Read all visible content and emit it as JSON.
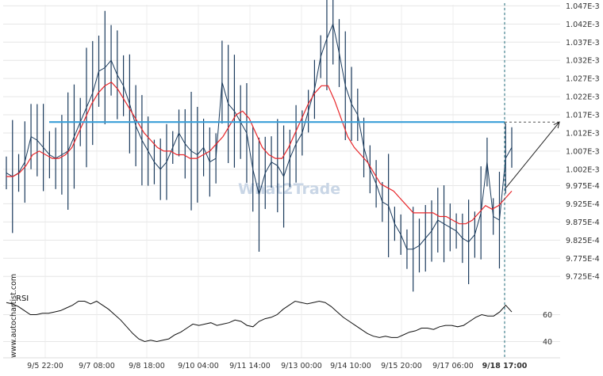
{
  "watermark": "What2Trade",
  "side_text": "www.autochartist.com",
  "chart_data": [
    {
      "type": "line",
      "title": "",
      "xlabel": "",
      "ylabel": "",
      "x_ticks": [
        "9/5 22:00",
        "9/7 08:00",
        "9/8 18:00",
        "9/10 04:00",
        "9/11 14:00",
        "9/13 00:00",
        "9/14 10:00",
        "9/15 20:00",
        "9/17 06:00",
        "9/18 17:00"
      ],
      "y_ticks": [
        "1.047E-3",
        "1.042E-3",
        "1.037E-3",
        "1.032E-3",
        "1.027E-3",
        "1.022E-3",
        "1.017E-3",
        "1.012E-3",
        "1.007E-3",
        "1.002E-3",
        "9.975E-4",
        "9.925E-4",
        "9.875E-4",
        "9.825E-4",
        "9.775E-4",
        "9.725E-4"
      ],
      "ylim": [
        0.0009708,
        0.0010473
      ],
      "grid": true,
      "resistance_level": 0.001015,
      "projection": {
        "from": 0.000997,
        "to": 0.001015
      },
      "vertical_marker": "9/18 17:00",
      "series": [
        {
          "color": "#1a3a5c",
          "values": [
            0.001001,
            0.001,
            0.001001,
            0.001004,
            0.001011,
            0.00101,
            0.001008,
            0.001006,
            0.001005,
            0.001006,
            0.001007,
            0.001011,
            0.001015,
            0.001019,
            0.001023,
            0.001029,
            0.00103,
            0.001032,
            0.001028,
            0.001025,
            0.00102,
            0.001014,
            0.00101,
            0.001007,
            0.001004,
            0.001002,
            0.001004,
            0.001008,
            0.001012,
            0.001009,
            0.001007,
            0.001006,
            0.001008,
            0.001004,
            0.001005,
            0.001026,
            0.00102,
            0.001018,
            0.001015,
            0.001012,
            0.001002,
            0.000995,
            0.001001,
            0.001004,
            0.001003,
            0.001,
            0.001005,
            0.001009,
            0.001012,
            0.001018,
            0.001024,
            0.001033,
            0.001038,
            0.001042,
            0.001034,
            0.001025,
            0.00102,
            0.001017,
            0.001008,
            0.001002,
            0.000998,
            0.000993,
            0.000992,
            0.000987,
            0.000984,
            0.00098,
            0.00098,
            0.000981,
            0.000983,
            0.000985,
            0.000988,
            0.000987,
            0.000986,
            0.000985,
            0.000983,
            0.000982,
            0.000984,
            0.00099,
            0.001004,
            0.000989,
            0.000988,
            0.001005,
            0.001008
          ]
        },
        {
          "color": "#e8262a",
          "values": [
            0.001,
            0.001,
            0.001001,
            0.001003,
            0.001006,
            0.001007,
            0.001006,
            0.001005,
            0.001005,
            0.001006,
            0.001008,
            0.001012,
            0.001016,
            0.00102,
            0.001023,
            0.001025,
            0.001026,
            0.001024,
            0.001021,
            0.001018,
            0.001015,
            0.001012,
            0.00101,
            0.001008,
            0.001007,
            0.001007,
            0.001006,
            0.001006,
            0.001005,
            0.001005,
            0.001006,
            0.001007,
            0.001009,
            0.001011,
            0.001014,
            0.001017,
            0.001018,
            0.001016,
            0.001012,
            0.001008,
            0.001006,
            0.001005,
            0.001005,
            0.001008,
            0.001012,
            0.001016,
            0.00102,
            0.001023,
            0.001025,
            0.001025,
            0.001021,
            0.001016,
            0.001011,
            0.001008,
            0.001006,
            0.001004,
            0.001001,
            0.000998,
            0.000997,
            0.000996,
            0.000994,
            0.000992,
            0.00099,
            0.00099,
            0.00099,
            0.00099,
            0.000989,
            0.000989,
            0.000988,
            0.000987,
            0.000987,
            0.000988,
            0.00099,
            0.000992,
            0.000991,
            0.000992,
            0.000994,
            0.000996
          ]
        }
      ]
    },
    {
      "type": "line",
      "title": "",
      "xlabel": "",
      "ylabel": "RSI",
      "y_ticks": [
        "60",
        "40"
      ],
      "ylim": [
        35,
        75
      ],
      "grid": true,
      "series": [
        {
          "color": "#111111",
          "values": [
            69,
            68,
            66,
            63,
            60,
            60,
            61,
            61,
            62,
            63,
            65,
            67,
            70,
            70,
            68,
            70,
            67,
            64,
            60,
            56,
            51,
            46,
            42,
            40,
            41,
            40,
            41,
            42,
            45,
            47,
            50,
            53,
            52,
            53,
            54,
            52,
            53,
            54,
            56,
            55,
            52,
            51,
            55,
            57,
            58,
            60,
            64,
            67,
            70,
            69,
            68,
            69,
            70,
            69,
            66,
            62,
            58,
            55,
            52,
            49,
            46,
            44,
            43,
            44,
            43,
            43,
            45,
            47,
            48,
            50,
            50,
            49,
            51,
            52,
            52,
            51,
            52,
            55,
            58,
            60,
            59,
            59,
            62,
            67,
            62
          ]
        }
      ]
    }
  ]
}
